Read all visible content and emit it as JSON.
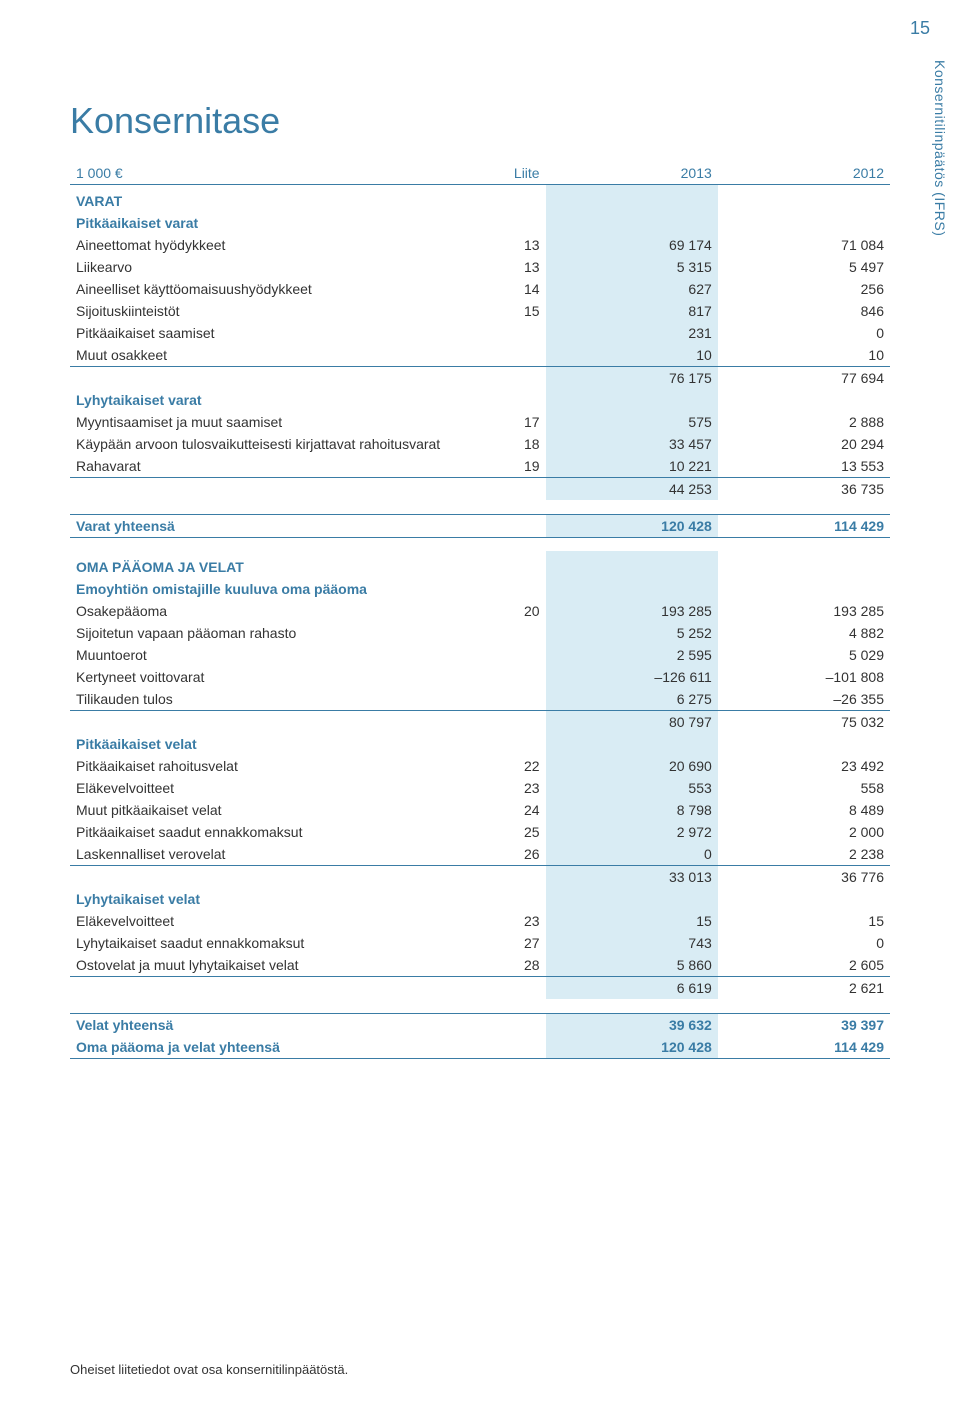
{
  "page_number": "15",
  "side_tab": "Konsernitilinpäätös (IFRS)",
  "title": "Konsernitase",
  "footnote": "Oheiset liitetiedot ovat osa konsernitilinpäätöstä.",
  "columns": {
    "c1": "1 000 €",
    "c2": "Liite",
    "c3": "2013",
    "c4": "2012"
  },
  "rows": [
    {
      "type": "section",
      "upper": true,
      "label": "VARAT"
    },
    {
      "type": "sub",
      "label": "Pitkäaikaiset varat"
    },
    {
      "type": "data",
      "label": "Aineettomat hyödykkeet",
      "c2": "13",
      "c3": "69 174",
      "c4": "71 084"
    },
    {
      "type": "data",
      "label": "Liikearvo",
      "c2": "13",
      "c3": "5 315",
      "c4": "5 497"
    },
    {
      "type": "data",
      "label": "Aineelliset käyttöomaisuushyödykkeet",
      "c2": "14",
      "c3": "627",
      "c4": "256"
    },
    {
      "type": "data",
      "label": "Sijoituskiinteistöt",
      "c2": "15",
      "c3": "817",
      "c4": "846"
    },
    {
      "type": "data",
      "label": "Pitkäaikaiset saamiset",
      "c2": "",
      "c3": "231",
      "c4": "0"
    },
    {
      "type": "data",
      "label": "Muut osakkeet",
      "c2": "",
      "c3": "10",
      "c4": "10",
      "rule_bottom": true
    },
    {
      "type": "data",
      "label": "",
      "c2": "",
      "c3": "76 175",
      "c4": "77 694"
    },
    {
      "type": "sub",
      "label": "Lyhytaikaiset varat"
    },
    {
      "type": "data",
      "label": "Myyntisaamiset ja muut saamiset",
      "c2": "17",
      "c3": "575",
      "c4": "2 888"
    },
    {
      "type": "data",
      "label": "Käypään arvoon tulosvaikutteisesti kirjattavat rahoitusvarat",
      "c2": "18",
      "c3": "33 457",
      "c4": "20 294"
    },
    {
      "type": "data",
      "label": "Rahavarat",
      "c2": "19",
      "c3": "10 221",
      "c4": "13 553",
      "rule_bottom": true
    },
    {
      "type": "data",
      "label": "",
      "c2": "",
      "c3": "44 253",
      "c4": "36 735"
    },
    {
      "type": "spacer"
    },
    {
      "type": "bold",
      "label": "Varat yhteensä",
      "c2": "",
      "c3": "120 428",
      "c4": "114 429",
      "rule_top": true,
      "rule_bottom": true
    },
    {
      "type": "spacer"
    },
    {
      "type": "section",
      "upper": true,
      "label": "OMA PÄÄOMA JA VELAT"
    },
    {
      "type": "sub",
      "label": "Emoyhtiön omistajille kuuluva oma pääoma"
    },
    {
      "type": "data",
      "label": "Osakepääoma",
      "c2": "20",
      "c3": "193 285",
      "c4": "193 285"
    },
    {
      "type": "data",
      "label": "Sijoitetun vapaan pääoman rahasto",
      "c2": "",
      "c3": "5 252",
      "c4": "4 882"
    },
    {
      "type": "data",
      "label": "Muuntoerot",
      "c2": "",
      "c3": "2 595",
      "c4": "5 029"
    },
    {
      "type": "data",
      "label": "Kertyneet voittovarat",
      "c2": "",
      "c3": "–126 611",
      "c4": "–101 808"
    },
    {
      "type": "data",
      "label": "Tilikauden tulos",
      "c2": "",
      "c3": "6 275",
      "c4": "–26 355",
      "rule_bottom": true
    },
    {
      "type": "data",
      "label": "",
      "c2": "",
      "c3": "80 797",
      "c4": "75 032"
    },
    {
      "type": "sub",
      "label": "Pitkäaikaiset velat"
    },
    {
      "type": "data",
      "label": "Pitkäaikaiset rahoitusvelat",
      "c2": "22",
      "c3": "20 690",
      "c4": "23 492"
    },
    {
      "type": "data",
      "label": "Eläkevelvoitteet",
      "c2": "23",
      "c3": "553",
      "c4": "558"
    },
    {
      "type": "data",
      "label": "Muut pitkäaikaiset velat",
      "c2": "24",
      "c3": "8 798",
      "c4": "8 489"
    },
    {
      "type": "data",
      "label": "Pitkäaikaiset saadut ennakkomaksut",
      "c2": "25",
      "c3": "2 972",
      "c4": "2 000"
    },
    {
      "type": "data",
      "label": "Laskennalliset verovelat",
      "c2": "26",
      "c3": "0",
      "c4": "2 238",
      "rule_bottom": true
    },
    {
      "type": "data",
      "label": "",
      "c2": "",
      "c3": "33 013",
      "c4": "36 776"
    },
    {
      "type": "sub",
      "label": "Lyhytaikaiset velat"
    },
    {
      "type": "data",
      "label": "Eläkevelvoitteet",
      "c2": "23",
      "c3": "15",
      "c4": "15"
    },
    {
      "type": "data",
      "label": "Lyhytaikaiset saadut ennakkomaksut",
      "c2": "27",
      "c3": "743",
      "c4": "0"
    },
    {
      "type": "data",
      "label": "Ostovelat ja muut lyhytaikaiset velat",
      "c2": "28",
      "c3": "5 860",
      "c4": "2 605",
      "rule_bottom": true
    },
    {
      "type": "data",
      "label": "",
      "c2": "",
      "c3": "6 619",
      "c4": "2 621"
    },
    {
      "type": "spacer"
    },
    {
      "type": "bold",
      "label": "Velat yhteensä",
      "c2": "",
      "c3": "39 632",
      "c4": "39 397",
      "rule_top": true
    },
    {
      "type": "bold",
      "label": "Oma pääoma ja velat yhteensä",
      "c2": "",
      "c3": "120 428",
      "c4": "114 429",
      "rule_bottom": true
    }
  ]
}
